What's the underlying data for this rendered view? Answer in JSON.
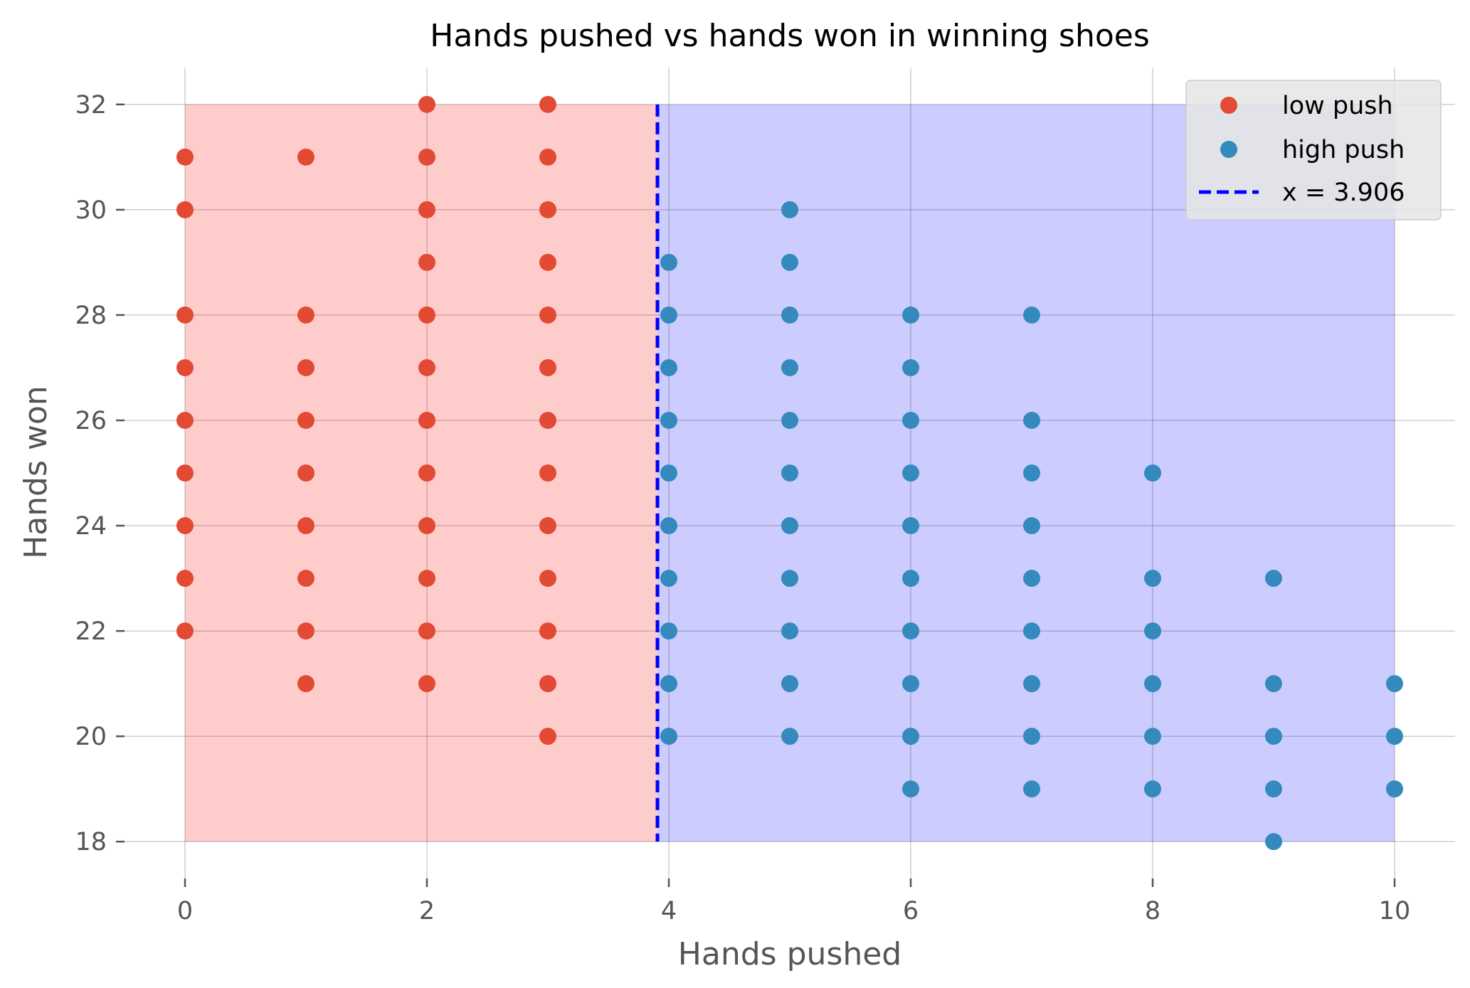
{
  "chart_data": {
    "type": "scatter",
    "title": "Hands pushed vs hands won in winning shoes",
    "xlabel": "Hands pushed",
    "ylabel": "Hands won",
    "xlim": [
      -0.5,
      10.5
    ],
    "ylim": [
      17.3,
      32.7
    ],
    "xticks": [
      0,
      2,
      4,
      6,
      8,
      10
    ],
    "yticks": [
      18,
      20,
      22,
      24,
      26,
      28,
      30,
      32
    ],
    "grid": true,
    "legend_position": "top-right",
    "threshold": {
      "label": "x = 3.906",
      "x": 3.906,
      "color": "#0000ff",
      "style": "dashed"
    },
    "regions": [
      {
        "x": [
          0,
          3.906
        ],
        "y": [
          18,
          32
        ],
        "color": "#ff6464",
        "opacity": 0.33
      },
      {
        "x": [
          3.906,
          10
        ],
        "y": [
          18,
          32
        ],
        "color": "#6464ff",
        "opacity": 0.33
      }
    ],
    "series": [
      {
        "name": "low push",
        "color": "#e24a33",
        "points": [
          [
            0,
            31
          ],
          [
            0,
            30
          ],
          [
            0,
            28
          ],
          [
            0,
            27
          ],
          [
            0,
            26
          ],
          [
            0,
            25
          ],
          [
            0,
            24
          ],
          [
            0,
            23
          ],
          [
            0,
            22
          ],
          [
            1,
            31
          ],
          [
            1,
            28
          ],
          [
            1,
            27
          ],
          [
            1,
            26
          ],
          [
            1,
            25
          ],
          [
            1,
            24
          ],
          [
            1,
            23
          ],
          [
            1,
            22
          ],
          [
            1,
            21
          ],
          [
            2,
            32
          ],
          [
            2,
            31
          ],
          [
            2,
            30
          ],
          [
            2,
            29
          ],
          [
            2,
            28
          ],
          [
            2,
            27
          ],
          [
            2,
            26
          ],
          [
            2,
            25
          ],
          [
            2,
            24
          ],
          [
            2,
            23
          ],
          [
            2,
            22
          ],
          [
            2,
            21
          ],
          [
            3,
            32
          ],
          [
            3,
            31
          ],
          [
            3,
            30
          ],
          [
            3,
            29
          ],
          [
            3,
            28
          ],
          [
            3,
            27
          ],
          [
            3,
            26
          ],
          [
            3,
            25
          ],
          [
            3,
            24
          ],
          [
            3,
            23
          ],
          [
            3,
            22
          ],
          [
            3,
            21
          ],
          [
            3,
            20
          ]
        ]
      },
      {
        "name": "high push",
        "color": "#348abd",
        "points": [
          [
            4,
            29
          ],
          [
            4,
            28
          ],
          [
            4,
            27
          ],
          [
            4,
            26
          ],
          [
            4,
            25
          ],
          [
            4,
            24
          ],
          [
            4,
            23
          ],
          [
            4,
            22
          ],
          [
            4,
            21
          ],
          [
            4,
            20
          ],
          [
            5,
            30
          ],
          [
            5,
            29
          ],
          [
            5,
            28
          ],
          [
            5,
            27
          ],
          [
            5,
            26
          ],
          [
            5,
            25
          ],
          [
            5,
            24
          ],
          [
            5,
            23
          ],
          [
            5,
            22
          ],
          [
            5,
            21
          ],
          [
            5,
            20
          ],
          [
            6,
            28
          ],
          [
            6,
            27
          ],
          [
            6,
            26
          ],
          [
            6,
            25
          ],
          [
            6,
            24
          ],
          [
            6,
            23
          ],
          [
            6,
            22
          ],
          [
            6,
            21
          ],
          [
            6,
            20
          ],
          [
            6,
            19
          ],
          [
            7,
            28
          ],
          [
            7,
            26
          ],
          [
            7,
            25
          ],
          [
            7,
            24
          ],
          [
            7,
            23
          ],
          [
            7,
            22
          ],
          [
            7,
            21
          ],
          [
            7,
            20
          ],
          [
            7,
            19
          ],
          [
            8,
            25
          ],
          [
            8,
            23
          ],
          [
            8,
            22
          ],
          [
            8,
            21
          ],
          [
            8,
            20
          ],
          [
            8,
            19
          ],
          [
            9,
            23
          ],
          [
            9,
            21
          ],
          [
            9,
            20
          ],
          [
            9,
            19
          ],
          [
            9,
            18
          ],
          [
            10,
            21
          ],
          [
            10,
            20
          ],
          [
            10,
            19
          ]
        ]
      }
    ]
  }
}
